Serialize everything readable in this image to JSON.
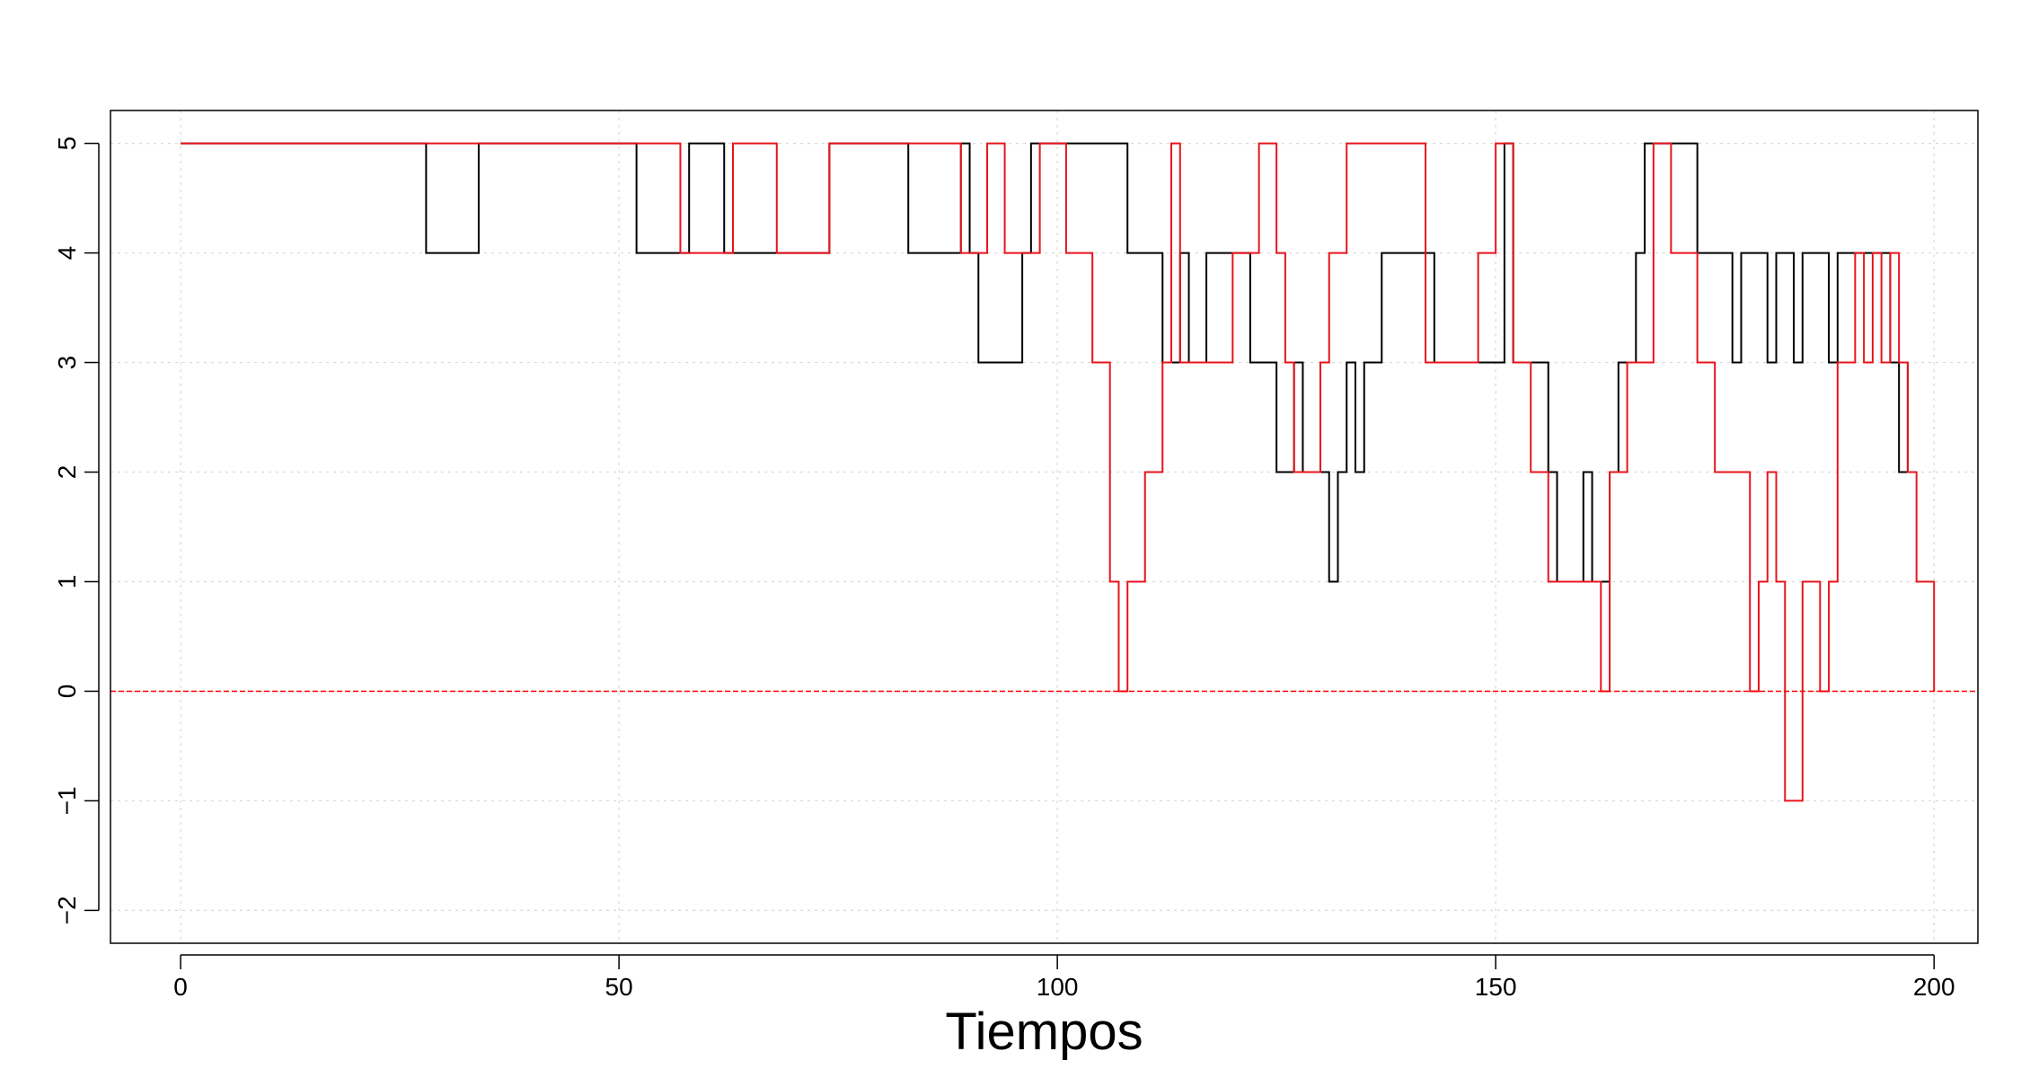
{
  "chart_data": {
    "type": "line",
    "step": true,
    "title": "",
    "xlabel": "Tiempos",
    "ylabel": "",
    "xlim": [
      -8,
      205
    ],
    "ylim": [
      -2.3,
      5.3
    ],
    "xticks": [
      0,
      50,
      100,
      150,
      200
    ],
    "yticks": [
      -2,
      -1,
      0,
      1,
      2,
      3,
      4,
      5
    ],
    "grid": true,
    "legend": "none",
    "hline": {
      "y": 0,
      "color": "#ff0000",
      "style": "dashed"
    },
    "colors": {
      "series_black": "#000000",
      "series_red": "#e8141c",
      "grid": "#d9d9d9"
    },
    "series": [
      {
        "color": "#000000",
        "points": [
          [
            0,
            5
          ],
          [
            28,
            4
          ],
          [
            34,
            5
          ],
          [
            52,
            4
          ],
          [
            58,
            5
          ],
          [
            62,
            4
          ],
          [
            74,
            5
          ],
          [
            83,
            4
          ],
          [
            89,
            5
          ],
          [
            90,
            4
          ],
          [
            91,
            3
          ],
          [
            96,
            4
          ],
          [
            97,
            5
          ],
          [
            108,
            4
          ],
          [
            112,
            3
          ],
          [
            114,
            4
          ],
          [
            115,
            3
          ],
          [
            117,
            4
          ],
          [
            122,
            3
          ],
          [
            125,
            2
          ],
          [
            127,
            3
          ],
          [
            128,
            2
          ],
          [
            131,
            1
          ],
          [
            132,
            2
          ],
          [
            133,
            3
          ],
          [
            134,
            2
          ],
          [
            135,
            3
          ],
          [
            137,
            4
          ],
          [
            143,
            3
          ],
          [
            151,
            5
          ],
          [
            152,
            3
          ],
          [
            156,
            2
          ],
          [
            157,
            1
          ],
          [
            160,
            2
          ],
          [
            161,
            1
          ],
          [
            163,
            2
          ],
          [
            164,
            3
          ],
          [
            166,
            4
          ],
          [
            167,
            5
          ],
          [
            173,
            4
          ],
          [
            177,
            3
          ],
          [
            178,
            4
          ],
          [
            181,
            3
          ],
          [
            182,
            4
          ],
          [
            184,
            3
          ],
          [
            185,
            4
          ],
          [
            188,
            3
          ],
          [
            189,
            4
          ],
          [
            195,
            3
          ],
          [
            196,
            2
          ],
          [
            197,
            3
          ]
        ]
      },
      {
        "color": "#e8141c",
        "points": [
          [
            0,
            5
          ],
          [
            57,
            4
          ],
          [
            63,
            5
          ],
          [
            68,
            4
          ],
          [
            74,
            5
          ],
          [
            89,
            4
          ],
          [
            92,
            5
          ],
          [
            94,
            4
          ],
          [
            98,
            5
          ],
          [
            101,
            4
          ],
          [
            104,
            3
          ],
          [
            106,
            1
          ],
          [
            107,
            0
          ],
          [
            108,
            1
          ],
          [
            110,
            2
          ],
          [
            112,
            3
          ],
          [
            113,
            5
          ],
          [
            114,
            3
          ],
          [
            116,
            3
          ],
          [
            120,
            4
          ],
          [
            123,
            5
          ],
          [
            125,
            4
          ],
          [
            126,
            3
          ],
          [
            127,
            2
          ],
          [
            130,
            3
          ],
          [
            131,
            4
          ],
          [
            133,
            5
          ],
          [
            142,
            3
          ],
          [
            148,
            4
          ],
          [
            150,
            5
          ],
          [
            152,
            3
          ],
          [
            154,
            2
          ],
          [
            156,
            1
          ],
          [
            162,
            0
          ],
          [
            163,
            2
          ],
          [
            165,
            3
          ],
          [
            168,
            5
          ],
          [
            170,
            4
          ],
          [
            173,
            3
          ],
          [
            175,
            2
          ],
          [
            179,
            0
          ],
          [
            180,
            1
          ],
          [
            181,
            2
          ],
          [
            182,
            1
          ],
          [
            183,
            -1
          ],
          [
            185,
            1
          ],
          [
            187,
            0
          ],
          [
            188,
            1
          ],
          [
            189,
            3
          ],
          [
            191,
            4
          ],
          [
            192,
            3
          ],
          [
            193,
            4
          ],
          [
            194,
            3
          ],
          [
            195,
            4
          ],
          [
            196,
            3
          ],
          [
            197,
            2
          ],
          [
            198,
            1
          ],
          [
            200,
            0
          ]
        ]
      }
    ]
  }
}
